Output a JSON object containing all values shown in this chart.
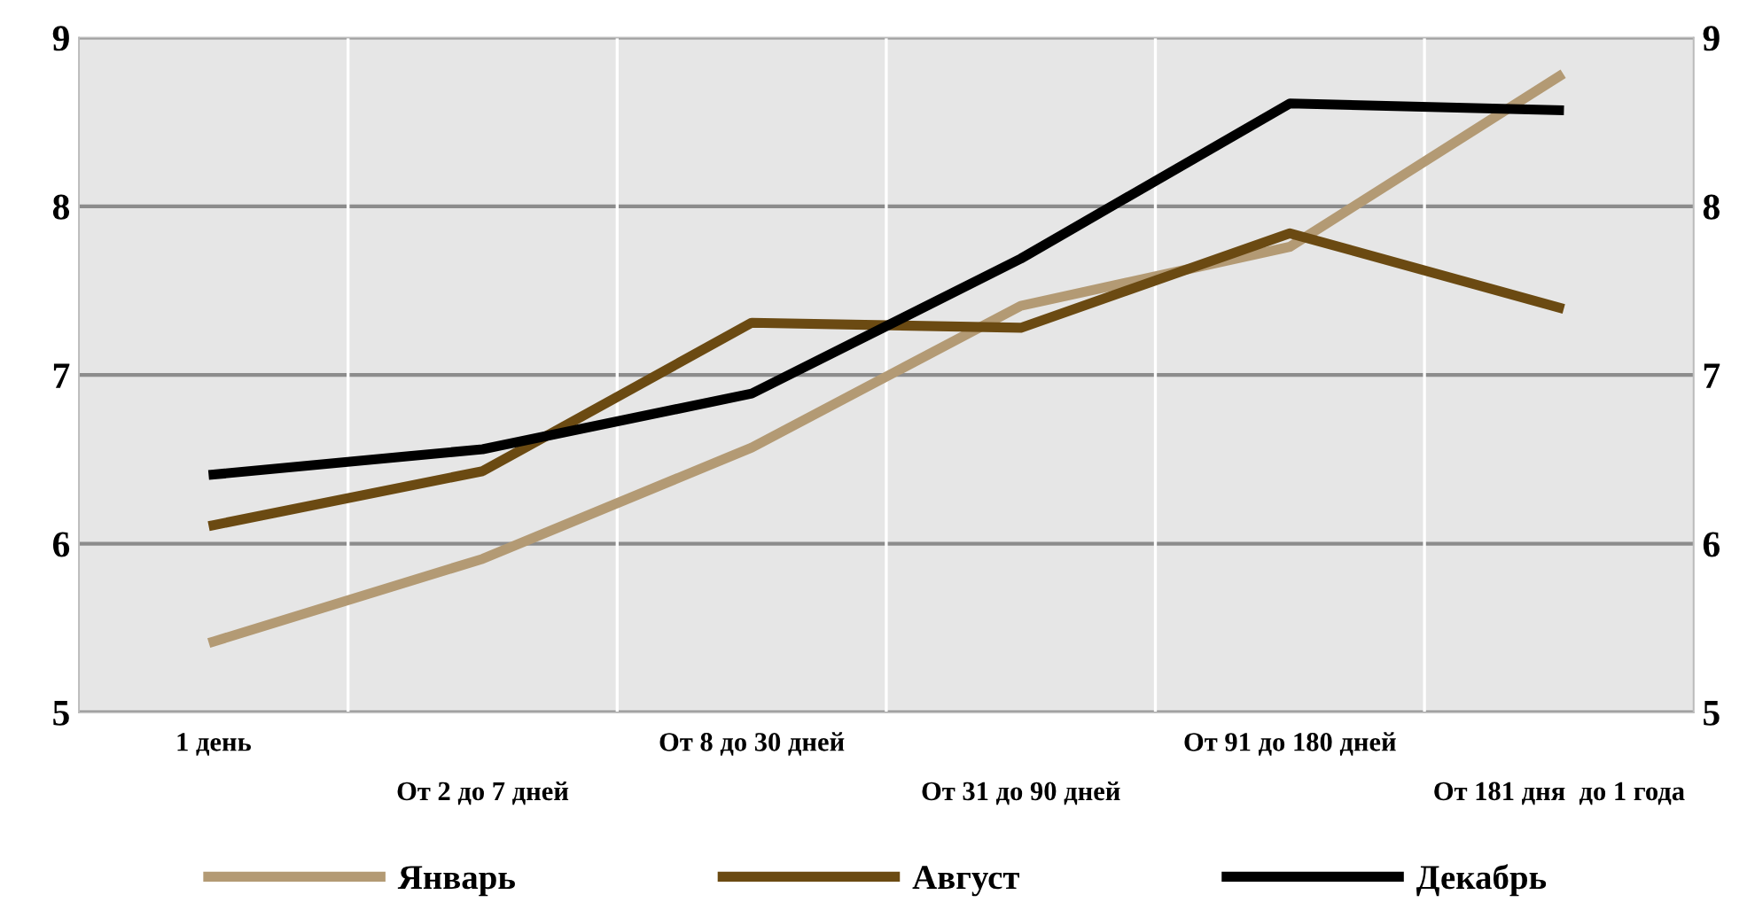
{
  "chart_data": {
    "type": "line",
    "categories": [
      "1 день",
      "От 2 до 7 дней",
      "От 8 до 30 дней",
      "От 31 до 90 дней",
      "От 91 до 180 дней",
      "От 181 дня  до 1 года"
    ],
    "series": [
      {
        "name": "Январь",
        "color": "#b39a74",
        "values": [
          5.42,
          5.91,
          6.57,
          7.41,
          7.76,
          8.77
        ]
      },
      {
        "name": "Август",
        "color": "#6b4a12",
        "values": [
          6.11,
          6.43,
          7.31,
          7.28,
          7.84,
          7.4
        ]
      },
      {
        "name": "Декабрь",
        "color": "#000000",
        "values": [
          6.41,
          6.56,
          6.89,
          7.69,
          8.61,
          8.57
        ]
      }
    ],
    "ylim": [
      5,
      9
    ],
    "yticks": [
      5,
      6,
      7,
      8,
      9
    ],
    "y2lim": [
      5,
      9
    ],
    "y2ticks": [
      5,
      6,
      7,
      8,
      9
    ],
    "grid": true,
    "legend": "bottom",
    "marker": "none",
    "line_style": "solid"
  }
}
